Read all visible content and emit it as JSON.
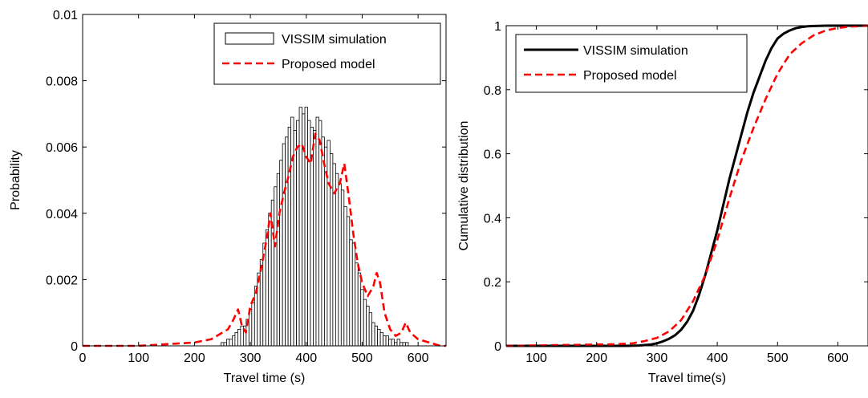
{
  "chart_data": [
    {
      "type": "bar",
      "xlabel": "Travel time (s)",
      "ylabel": "Probability",
      "xlim": [
        0,
        650
      ],
      "ylim": [
        0,
        0.01
      ],
      "xticks": [
        0,
        100,
        200,
        300,
        400,
        500,
        600
      ],
      "yticks": [
        0,
        0.002,
        0.004,
        0.006,
        0.008,
        0.01
      ],
      "xtick_labels": [
        "0",
        "100",
        "200",
        "300",
        "400",
        "500",
        "600"
      ],
      "ytick_labels": [
        "0",
        "0.002",
        "0.004",
        "0.006",
        "0.008",
        "0.01"
      ],
      "legend_position": "top-right",
      "grid": false,
      "series": [
        {
          "name": "VISSIM simulation",
          "kind": "histogram",
          "color": "#000000",
          "bin_width": 5,
          "x": [
            250,
            255,
            260,
            265,
            270,
            275,
            280,
            285,
            290,
            295,
            300,
            305,
            310,
            315,
            320,
            325,
            330,
            335,
            340,
            345,
            350,
            355,
            360,
            365,
            370,
            375,
            380,
            385,
            390,
            395,
            400,
            405,
            410,
            415,
            420,
            425,
            430,
            435,
            440,
            445,
            450,
            455,
            460,
            465,
            470,
            475,
            480,
            485,
            490,
            495,
            500,
            505,
            510,
            515,
            520,
            525,
            530,
            535,
            540,
            545,
            550,
            555,
            560,
            565,
            570,
            575,
            580
          ],
          "values": [
            0.0001,
            0.0001,
            0.0002,
            0.0002,
            0.0003,
            0.0004,
            0.0005,
            0.0006,
            0.0006,
            0.0008,
            0.0011,
            0.0013,
            0.0018,
            0.0022,
            0.0026,
            0.0031,
            0.0035,
            0.004,
            0.0044,
            0.0048,
            0.0052,
            0.0056,
            0.0061,
            0.0063,
            0.0066,
            0.0069,
            0.0065,
            0.0068,
            0.0072,
            0.007,
            0.0072,
            0.0068,
            0.0066,
            0.0065,
            0.0069,
            0.0068,
            0.0063,
            0.006,
            0.0062,
            0.0058,
            0.0055,
            0.0052,
            0.0049,
            0.0047,
            0.0042,
            0.0039,
            0.0032,
            0.0031,
            0.0025,
            0.0022,
            0.0017,
            0.0014,
            0.0012,
            0.001,
            0.0007,
            0.0006,
            0.0005,
            0.0004,
            0.0003,
            0.0003,
            0.0002,
            0.0002,
            0.0001,
            0.0002,
            0.0001,
            0.0001,
            0.0001
          ]
        },
        {
          "name": "Proposed model",
          "kind": "line",
          "color": "#ff0000",
          "dashed": true,
          "x": [
            0,
            100,
            200,
            230,
            250,
            260,
            270,
            278,
            285,
            292,
            300,
            310,
            320,
            330,
            336,
            344,
            352,
            360,
            368,
            376,
            384,
            392,
            400,
            408,
            416,
            424,
            432,
            440,
            450,
            460,
            468,
            476,
            484,
            492,
            500,
            510,
            520,
            526,
            532,
            540,
            550,
            560,
            570,
            578,
            586,
            600,
            620,
            640,
            650
          ],
          "values": [
            0,
            0,
            0.0001,
            0.0002,
            0.0004,
            0.0005,
            0.0008,
            0.0011,
            0.0006,
            0.0004,
            0.0012,
            0.0016,
            0.0024,
            0.0033,
            0.004,
            0.003,
            0.004,
            0.0046,
            0.0051,
            0.0057,
            0.006,
            0.0061,
            0.0057,
            0.0055,
            0.0064,
            0.0062,
            0.0055,
            0.0049,
            0.0046,
            0.0049,
            0.0055,
            0.0045,
            0.0034,
            0.0025,
            0.0019,
            0.0015,
            0.0018,
            0.0022,
            0.0019,
            0.001,
            0.0005,
            0.0003,
            0.0004,
            0.0007,
            0.0004,
            0.0002,
            0.0001,
            0,
            0
          ]
        }
      ]
    },
    {
      "type": "line",
      "xlabel": "Travel time(s)",
      "ylabel": "Cumulative distribution",
      "xlim": [
        50,
        650
      ],
      "ylim": [
        0,
        1
      ],
      "xticks": [
        100,
        200,
        300,
        400,
        500,
        600
      ],
      "yticks": [
        0,
        0.2,
        0.4,
        0.6,
        0.8,
        1
      ],
      "xtick_labels": [
        "100",
        "200",
        "300",
        "400",
        "500",
        "600"
      ],
      "ytick_labels": [
        "0",
        "0.2",
        "0.4",
        "0.6",
        "0.8",
        "1"
      ],
      "legend_position": "top-left",
      "grid": false,
      "series": [
        {
          "name": "VISSIM simulation",
          "color": "#000000",
          "dashed": false,
          "x": [
            50,
            250,
            270,
            290,
            300,
            310,
            320,
            330,
            340,
            350,
            360,
            370,
            380,
            390,
            400,
            410,
            420,
            430,
            440,
            450,
            460,
            470,
            480,
            490,
            500,
            510,
            520,
            530,
            540,
            550,
            560,
            580,
            600,
            650
          ],
          "values": [
            0,
            0,
            0.001,
            0.004,
            0.008,
            0.014,
            0.022,
            0.033,
            0.05,
            0.075,
            0.11,
            0.16,
            0.22,
            0.29,
            0.36,
            0.44,
            0.52,
            0.59,
            0.66,
            0.73,
            0.79,
            0.84,
            0.89,
            0.93,
            0.96,
            0.975,
            0.985,
            0.992,
            0.996,
            0.998,
            0.999,
            1,
            1,
            1
          ]
        },
        {
          "name": "Proposed model",
          "color": "#ff0000",
          "dashed": true,
          "x": [
            50,
            230,
            260,
            280,
            300,
            320,
            340,
            360,
            380,
            400,
            420,
            440,
            460,
            480,
            500,
            520,
            540,
            560,
            580,
            600,
            620,
            640,
            650
          ],
          "values": [
            0,
            0.005,
            0.008,
            0.015,
            0.025,
            0.045,
            0.08,
            0.14,
            0.22,
            0.33,
            0.46,
            0.58,
            0.68,
            0.77,
            0.85,
            0.91,
            0.945,
            0.97,
            0.985,
            0.993,
            0.997,
            0.999,
            1
          ]
        }
      ]
    }
  ]
}
